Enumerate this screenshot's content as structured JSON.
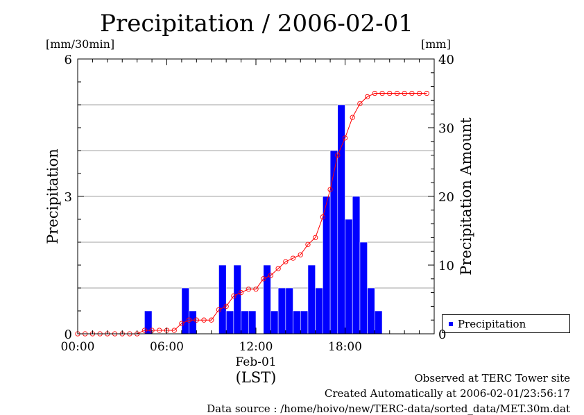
{
  "title": "Precipitation / 2006-02-01",
  "left_unit": "[mm/30min]",
  "right_unit": "[mm]",
  "y_left_label": "Precipitation",
  "y_right_label": "Precipitation Amount",
  "x_date_label": "Feb-01",
  "x_zone_label": "(LST)",
  "legend_label": "Precipitation",
  "footer": {
    "line1": "Observed at TERC Tower site",
    "line2": "Created Automatically at 2006-02-01/23:56:17",
    "line3": "Data source : /home/hoivo/new/TERC-data/sorted_data/MET.30m.dat"
  },
  "chart_data": {
    "type": "bar",
    "title": "Precipitation / 2006-02-01",
    "x_range_hours": [
      0,
      24
    ],
    "x_ticks": [
      "00:00",
      "06:00",
      "12:00",
      "18:00"
    ],
    "x_tick_hours": [
      0,
      6,
      12,
      18
    ],
    "y_left": {
      "label": "Precipitation",
      "unit": "[mm/30min]",
      "range": [
        0,
        6
      ],
      "ticks": [
        "0",
        "3",
        "6"
      ],
      "tick_values": [
        0,
        3,
        6
      ]
    },
    "y_right": {
      "label": "Precipitation Amount",
      "unit": "[mm]",
      "range": [
        0,
        40
      ],
      "ticks": [
        "0",
        "10",
        "20",
        "30",
        "40"
      ],
      "tick_values": [
        0,
        10,
        20,
        30,
        40
      ]
    },
    "grid": true,
    "legend_position": "bottom-right",
    "bar_color": "#0000ff",
    "line_color": "#ff0000",
    "series": [
      {
        "name": "Precipitation",
        "kind": "bar",
        "axis": "left",
        "interval_hours": 0.5,
        "values": [
          0,
          0,
          0,
          0,
          0,
          0,
          0,
          0,
          0,
          0.5,
          0,
          0,
          0,
          0,
          1,
          0.5,
          0,
          0,
          0,
          1.5,
          0.5,
          1.5,
          0.5,
          0.5,
          0,
          1.5,
          0.5,
          1,
          1,
          0.5,
          0.5,
          1.5,
          1,
          3,
          4,
          5,
          2.5,
          3,
          2,
          1,
          0.5,
          0,
          0,
          0,
          0,
          0,
          0,
          0
        ]
      },
      {
        "kind": "line",
        "axis": "right",
        "values": [
          0,
          0,
          0,
          0,
          0,
          0,
          0,
          0,
          0,
          0.5,
          0.5,
          0.5,
          0.5,
          0.5,
          1.5,
          2,
          2,
          2,
          2,
          3.5,
          4,
          5.5,
          6,
          6.5,
          6.5,
          8,
          8.5,
          9.5,
          10.5,
          11,
          11.5,
          13,
          14,
          17,
          21,
          26,
          28.5,
          31.5,
          33.5,
          34.5,
          35,
          35,
          35,
          35,
          35,
          35,
          35,
          35
        ]
      }
    ]
  }
}
